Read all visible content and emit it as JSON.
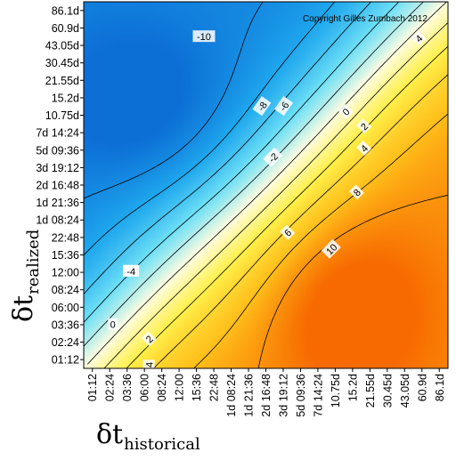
{
  "chart_data": {
    "type": "heatmap",
    "subtype": "filled-contour",
    "xlabel": {
      "symbol": "δt",
      "subscript": "historical"
    },
    "ylabel": {
      "symbol": "δt",
      "subscript": "realized"
    },
    "copyright": "Copyright Gilles Zumbach 2012",
    "x_ticks": [
      "01:12",
      "02:24",
      "03:36",
      "06:00",
      "08:24",
      "12:00",
      "15:36",
      "22:48",
      "1d 08:24",
      "1d 21:36",
      "2d 16:48",
      "3d 19:12",
      "5d 09:36",
      "7d 14:24",
      "10.75d",
      "15.2d",
      "21.55d",
      "30.45d",
      "43.05d",
      "60.9d",
      "86.1d"
    ],
    "y_ticks": [
      "01:12",
      "02:24",
      "03:36",
      "06:00",
      "08:24",
      "12:00",
      "15:36",
      "22:48",
      "1d 08:24",
      "1d 21:36",
      "2d 16:48",
      "3d 19:12",
      "5d 09:36",
      "7d 14:24",
      "10.75d",
      "15.2d",
      "21.55d",
      "30.45d",
      "43.05d",
      "60.9d",
      "86.1d"
    ],
    "z_range": [
      -12,
      12
    ],
    "colorscale": [
      "#0c6fd6",
      "#1fa8ee",
      "#6fe0f6",
      "#fffde0",
      "#fff04a",
      "#ffbe1a",
      "#f76a00"
    ],
    "contour_levels": [
      -10,
      -8,
      -6,
      -4,
      -2,
      0,
      2,
      4,
      6,
      8,
      10
    ],
    "contour_labels": [
      "-10",
      "-8",
      "-6",
      "-4",
      "-2",
      "0",
      "2",
      "4",
      "6",
      "8",
      "10",
      "4",
      "-4",
      "0",
      "2",
      "4"
    ],
    "note": "z is approximately antisymmetric about the diagonal: negative above (realized > historical), positive below; extrema near x~03:36/y~10.75d (min ≈ -11) and x~15.2d/y~03:36 (max ≈ 11)"
  }
}
